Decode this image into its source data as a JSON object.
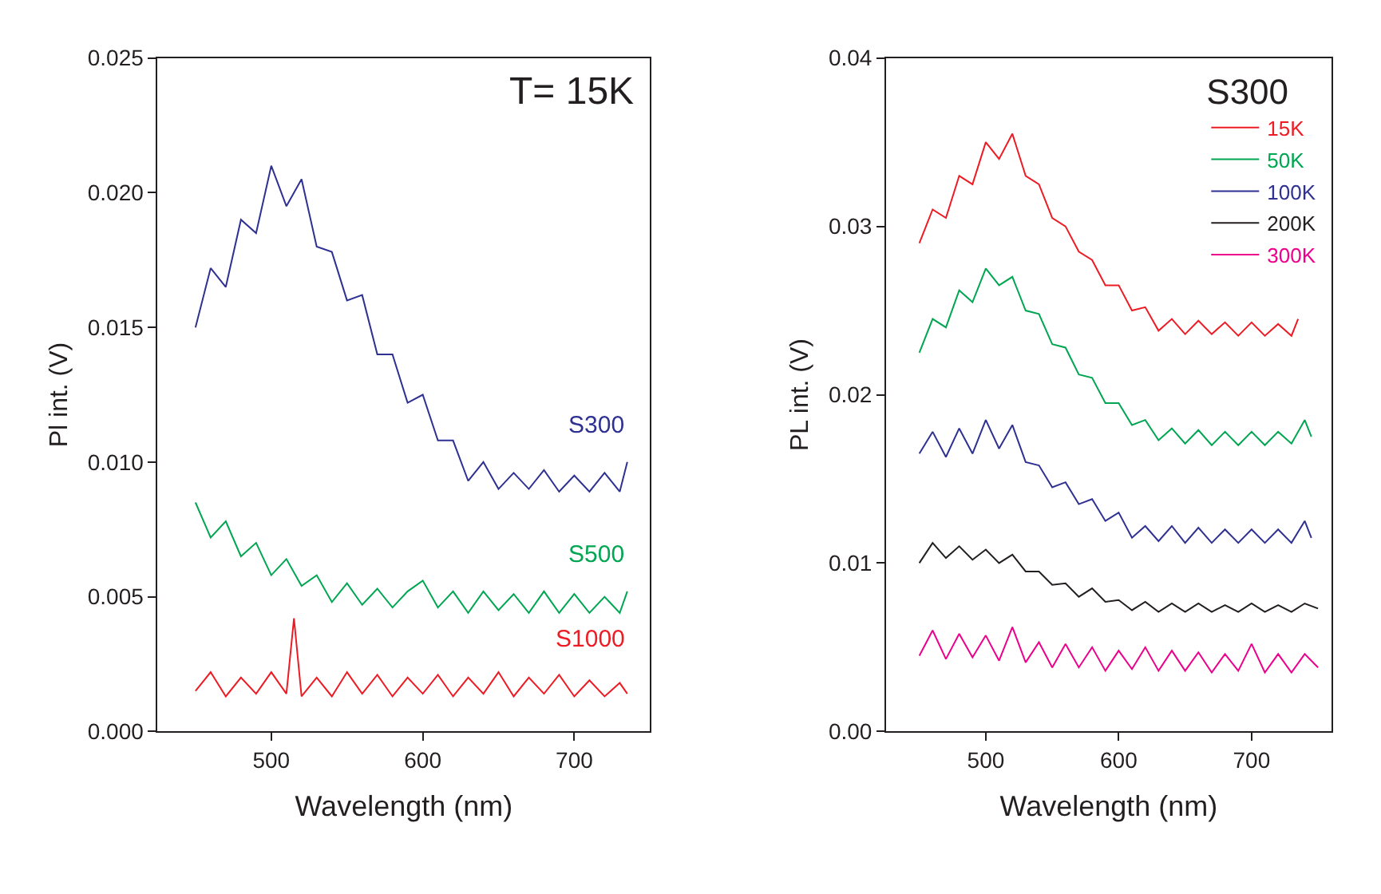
{
  "chart_data": [
    {
      "type": "line",
      "xlabel": "Wavelength (nm)",
      "ylabel": "Pl int. (V)",
      "annotations": [
        "T= 15K"
      ],
      "legend": false,
      "xlim": [
        425,
        750
      ],
      "xticks": [
        500,
        600,
        700
      ],
      "ylim": [
        0,
        0.025
      ],
      "yticks": [
        {
          "value": 0,
          "label": "0.000"
        },
        {
          "value": 0.005,
          "label": "0.005"
        },
        {
          "value": 0.01,
          "label": "0.010"
        },
        {
          "value": 0.015,
          "label": "0.015"
        },
        {
          "value": 0.02,
          "label": "0.020"
        },
        {
          "value": 0.025,
          "label": "0.025"
        }
      ],
      "series": [
        {
          "name": "S300",
          "color": "#2e3192",
          "x": [
            450,
            460,
            470,
            480,
            490,
            500,
            510,
            520,
            530,
            540,
            550,
            560,
            570,
            580,
            590,
            600,
            610,
            620,
            630,
            640,
            650,
            660,
            670,
            680,
            690,
            700,
            710,
            720,
            730,
            735
          ],
          "values": [
            0.015,
            0.0172,
            0.0165,
            0.019,
            0.0185,
            0.021,
            0.0195,
            0.0205,
            0.018,
            0.0178,
            0.016,
            0.0162,
            0.014,
            0.014,
            0.0122,
            0.0125,
            0.0108,
            0.0108,
            0.0093,
            0.01,
            0.009,
            0.0096,
            0.009,
            0.0097,
            0.0089,
            0.0095,
            0.0089,
            0.0096,
            0.0089,
            0.01
          ]
        },
        {
          "name": "S500",
          "color": "#00a651",
          "x": [
            450,
            460,
            470,
            480,
            490,
            500,
            510,
            520,
            530,
            540,
            550,
            560,
            570,
            580,
            590,
            600,
            610,
            620,
            630,
            640,
            650,
            660,
            670,
            680,
            690,
            700,
            710,
            720,
            730,
            735
          ],
          "values": [
            0.0085,
            0.0072,
            0.0078,
            0.0065,
            0.007,
            0.0058,
            0.0064,
            0.0054,
            0.0058,
            0.0048,
            0.0055,
            0.0047,
            0.0053,
            0.0046,
            0.0052,
            0.0056,
            0.0046,
            0.0052,
            0.0044,
            0.0052,
            0.0045,
            0.0051,
            0.0044,
            0.0052,
            0.0044,
            0.0051,
            0.0044,
            0.005,
            0.0044,
            0.0052
          ]
        },
        {
          "name": "S1000",
          "color": "#ed1c24",
          "x": [
            450,
            460,
            470,
            480,
            490,
            500,
            510,
            515,
            520,
            530,
            540,
            550,
            560,
            570,
            580,
            590,
            600,
            610,
            620,
            630,
            640,
            650,
            660,
            670,
            680,
            690,
            700,
            710,
            720,
            730,
            735
          ],
          "values": [
            0.0015,
            0.0022,
            0.0013,
            0.002,
            0.0014,
            0.0022,
            0.0014,
            0.0042,
            0.0013,
            0.002,
            0.0013,
            0.0022,
            0.0014,
            0.0021,
            0.0013,
            0.002,
            0.0014,
            0.0021,
            0.0013,
            0.002,
            0.0014,
            0.0022,
            0.0013,
            0.002,
            0.0014,
            0.0021,
            0.0013,
            0.0019,
            0.0013,
            0.0018,
            0.0014
          ]
        }
      ]
    },
    {
      "type": "line",
      "xlabel": "Wavelength (nm)",
      "ylabel": "PL int. (V)",
      "legend_title": "S300",
      "legend": "top right",
      "xlim": [
        425,
        760
      ],
      "xticks": [
        500,
        600,
        700
      ],
      "ylim": [
        0,
        0.04
      ],
      "yticks": [
        {
          "value": 0,
          "label": "0.00"
        },
        {
          "value": 0.01,
          "label": "0.01"
        },
        {
          "value": 0.02,
          "label": "0.02"
        },
        {
          "value": 0.03,
          "label": "0.03"
        },
        {
          "value": 0.04,
          "label": "0.04"
        }
      ],
      "series": [
        {
          "name": "15K",
          "color": "#ed1c24",
          "x": [
            450,
            460,
            470,
            480,
            490,
            500,
            510,
            520,
            530,
            540,
            550,
            560,
            570,
            580,
            590,
            600,
            610,
            620,
            630,
            640,
            650,
            660,
            670,
            680,
            690,
            700,
            710,
            720,
            730,
            735
          ],
          "values": [
            0.029,
            0.031,
            0.0305,
            0.033,
            0.0325,
            0.035,
            0.034,
            0.0355,
            0.033,
            0.0325,
            0.0305,
            0.03,
            0.0285,
            0.028,
            0.0265,
            0.0265,
            0.025,
            0.0252,
            0.0238,
            0.0245,
            0.0236,
            0.0244,
            0.0236,
            0.0243,
            0.0235,
            0.0243,
            0.0235,
            0.0242,
            0.0235,
            0.0245
          ]
        },
        {
          "name": "50K",
          "color": "#00a651",
          "x": [
            450,
            460,
            470,
            480,
            490,
            500,
            510,
            520,
            530,
            540,
            550,
            560,
            570,
            580,
            590,
            600,
            610,
            620,
            630,
            640,
            650,
            660,
            670,
            680,
            690,
            700,
            710,
            720,
            730,
            740,
            745
          ],
          "values": [
            0.0225,
            0.0245,
            0.024,
            0.0262,
            0.0255,
            0.0275,
            0.0265,
            0.027,
            0.025,
            0.0248,
            0.023,
            0.0228,
            0.0212,
            0.021,
            0.0195,
            0.0195,
            0.0182,
            0.0185,
            0.0173,
            0.018,
            0.0171,
            0.0179,
            0.017,
            0.0178,
            0.017,
            0.0178,
            0.017,
            0.0178,
            0.0171,
            0.0185,
            0.0175
          ]
        },
        {
          "name": "100K",
          "color": "#2e3192",
          "x": [
            450,
            460,
            470,
            480,
            490,
            500,
            510,
            520,
            530,
            540,
            550,
            560,
            570,
            580,
            590,
            600,
            610,
            620,
            630,
            640,
            650,
            660,
            670,
            680,
            690,
            700,
            710,
            720,
            730,
            740,
            745
          ],
          "values": [
            0.0165,
            0.0178,
            0.0163,
            0.018,
            0.0165,
            0.0185,
            0.0168,
            0.0182,
            0.016,
            0.0158,
            0.0145,
            0.0148,
            0.0135,
            0.0138,
            0.0125,
            0.013,
            0.0115,
            0.0122,
            0.0113,
            0.0122,
            0.0112,
            0.0121,
            0.0112,
            0.012,
            0.0112,
            0.012,
            0.0112,
            0.012,
            0.0112,
            0.0125,
            0.0115
          ]
        },
        {
          "name": "200K",
          "color": "#231f20",
          "x": [
            450,
            460,
            470,
            480,
            490,
            500,
            510,
            520,
            530,
            540,
            550,
            560,
            570,
            580,
            590,
            600,
            610,
            620,
            630,
            640,
            650,
            660,
            670,
            680,
            690,
            700,
            710,
            720,
            730,
            740,
            750
          ],
          "values": [
            0.01,
            0.0112,
            0.0103,
            0.011,
            0.0102,
            0.0108,
            0.01,
            0.0105,
            0.0095,
            0.0095,
            0.0087,
            0.0088,
            0.008,
            0.0085,
            0.0077,
            0.0078,
            0.0072,
            0.0077,
            0.0071,
            0.0076,
            0.0071,
            0.0076,
            0.0071,
            0.0075,
            0.0071,
            0.0076,
            0.0071,
            0.0075,
            0.0071,
            0.0076,
            0.0073
          ]
        },
        {
          "name": "300K",
          "color": "#ec008c",
          "x": [
            450,
            460,
            470,
            480,
            490,
            500,
            510,
            520,
            530,
            540,
            550,
            560,
            570,
            580,
            590,
            600,
            610,
            620,
            630,
            640,
            650,
            660,
            670,
            680,
            690,
            700,
            710,
            720,
            730,
            740,
            750
          ],
          "values": [
            0.0045,
            0.006,
            0.0043,
            0.0058,
            0.0044,
            0.0057,
            0.0042,
            0.0062,
            0.0041,
            0.0053,
            0.0038,
            0.0052,
            0.0038,
            0.005,
            0.0036,
            0.0048,
            0.0037,
            0.005,
            0.0036,
            0.0048,
            0.0036,
            0.0047,
            0.0035,
            0.0046,
            0.0036,
            0.0052,
            0.0035,
            0.0046,
            0.0035,
            0.0046,
            0.0038
          ]
        }
      ]
    }
  ]
}
